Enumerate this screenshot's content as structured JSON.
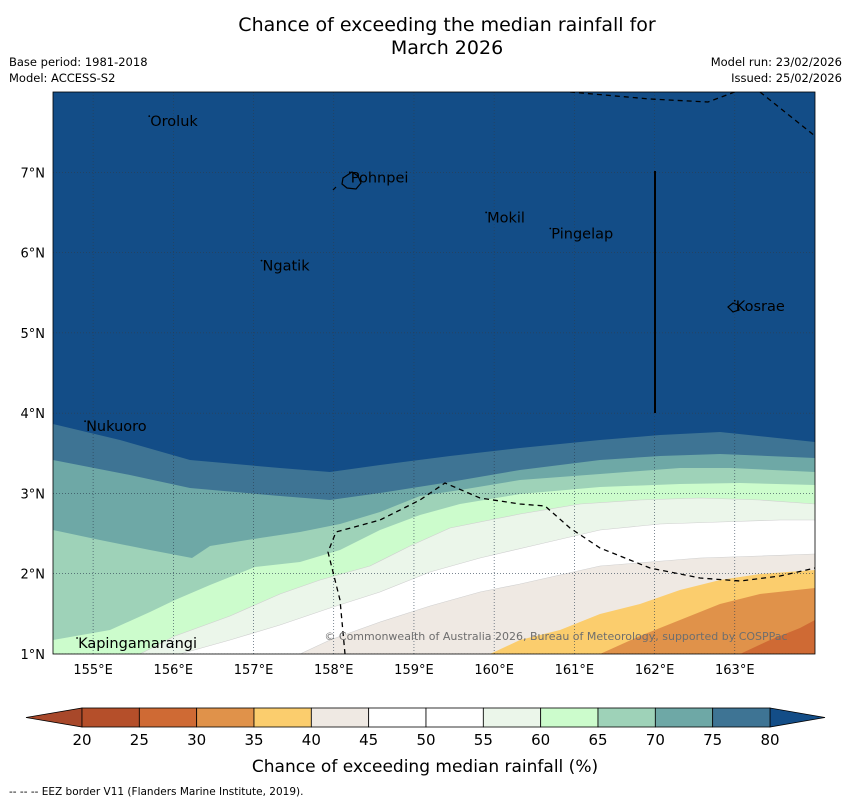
{
  "title_line1": "Chance of exceeding the median rainfall for",
  "title_line2": "March 2026",
  "meta": {
    "base_period": "Base period: 1981-2018",
    "model": "Model: ACCESS-S2",
    "model_run": "Model run: 23/02/2026",
    "issued": "Issued: 25/02/2026"
  },
  "copyright": "© Commonwealth of Australia 2026, Bureau of Meteorology, supported by COSPPac",
  "footnote": "--  --  -- EEZ border V11 (Flanders Marine Institute, 2019).",
  "chart_data": {
    "type": "heatmap",
    "title": "Chance of exceeding the median rainfall for March 2026",
    "x_range_deg_e": [
      154.5,
      164.0
    ],
    "y_range_deg_n": [
      1.0,
      8.0
    ],
    "x_ticks": [
      "155°E",
      "156°E",
      "157°E",
      "158°E",
      "159°E",
      "160°E",
      "161°E",
      "162°E",
      "163°E"
    ],
    "x_tick_values": [
      155,
      156,
      157,
      158,
      159,
      160,
      161,
      162,
      163
    ],
    "y_ticks": [
      "1°N",
      "2°N",
      "3°N",
      "4°N",
      "5°N",
      "6°N",
      "7°N"
    ],
    "y_tick_values": [
      1,
      2,
      3,
      4,
      5,
      6,
      7
    ],
    "grid": true,
    "places": [
      {
        "name": "Oroluk",
        "lon": 155.7,
        "lat": 7.6
      },
      {
        "name": "Pohnpei",
        "lon": 158.2,
        "lat": 6.9
      },
      {
        "name": "Mokil",
        "lon": 159.9,
        "lat": 6.4
      },
      {
        "name": "Pingelap",
        "lon": 160.7,
        "lat": 6.2
      },
      {
        "name": "Ngatik",
        "lon": 157.1,
        "lat": 5.8
      },
      {
        "name": "Kosrae",
        "lon": 163.0,
        "lat": 5.3
      },
      {
        "name": "Nukuoro",
        "lon": 154.9,
        "lat": 3.8
      },
      {
        "name": "Kapingamarangi",
        "lon": 154.8,
        "lat": 1.1
      }
    ],
    "colorbar": {
      "label": "Chance of exceeding median rainfall (%)",
      "ticks": [
        20,
        25,
        30,
        35,
        40,
        45,
        50,
        55,
        60,
        65,
        70,
        75,
        80
      ],
      "under_color": "#a8482a",
      "over_color": "#134d87",
      "colors": [
        "#b54f2a",
        "#cf6a34",
        "#e0924a",
        "#fbcd6d",
        "#efe9e3",
        "#ffffff",
        "#ffffff",
        "#ebf6ea",
        "#ccfccc",
        "#9ed2b8",
        "#6ea8a6",
        "#3e7494"
      ]
    }
  }
}
